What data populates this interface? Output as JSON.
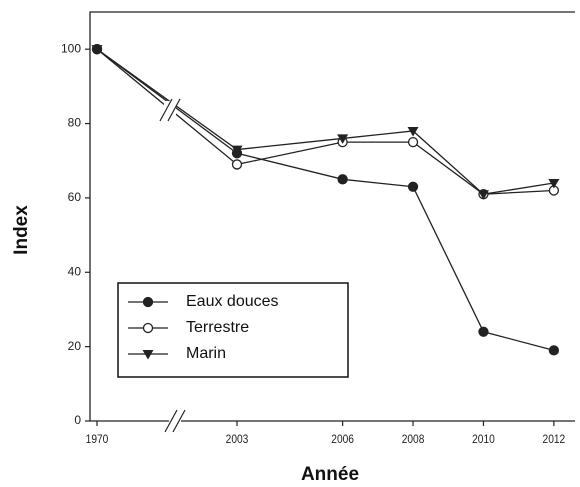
{
  "chart_data": {
    "type": "line",
    "x_label": "Année",
    "y_label": "Index",
    "x": [
      1970,
      2003,
      2006,
      2008,
      2010,
      2012
    ],
    "series": [
      {
        "name": "Eaux douces",
        "color": "#222222",
        "marker": "filled-circle",
        "values": [
          100,
          72,
          65,
          63,
          24,
          19
        ]
      },
      {
        "name": "Terrestre",
        "color": "#222222",
        "marker": "open-circle",
        "values": [
          100,
          69,
          75,
          75,
          61,
          62
        ]
      },
      {
        "name": "Marin",
        "color": "#222222",
        "marker": "triangle-down",
        "values": [
          100,
          73,
          76,
          78,
          61,
          64
        ]
      }
    ],
    "xlim": [
      1970,
      2012.6
    ],
    "xticks": [
      1970,
      2003,
      2006,
      2008,
      2010,
      2012
    ],
    "x_break": true,
    "ylim": [
      0,
      110
    ],
    "yticks": [
      0,
      20,
      40,
      60,
      80,
      100
    ],
    "legend": "lower left"
  }
}
